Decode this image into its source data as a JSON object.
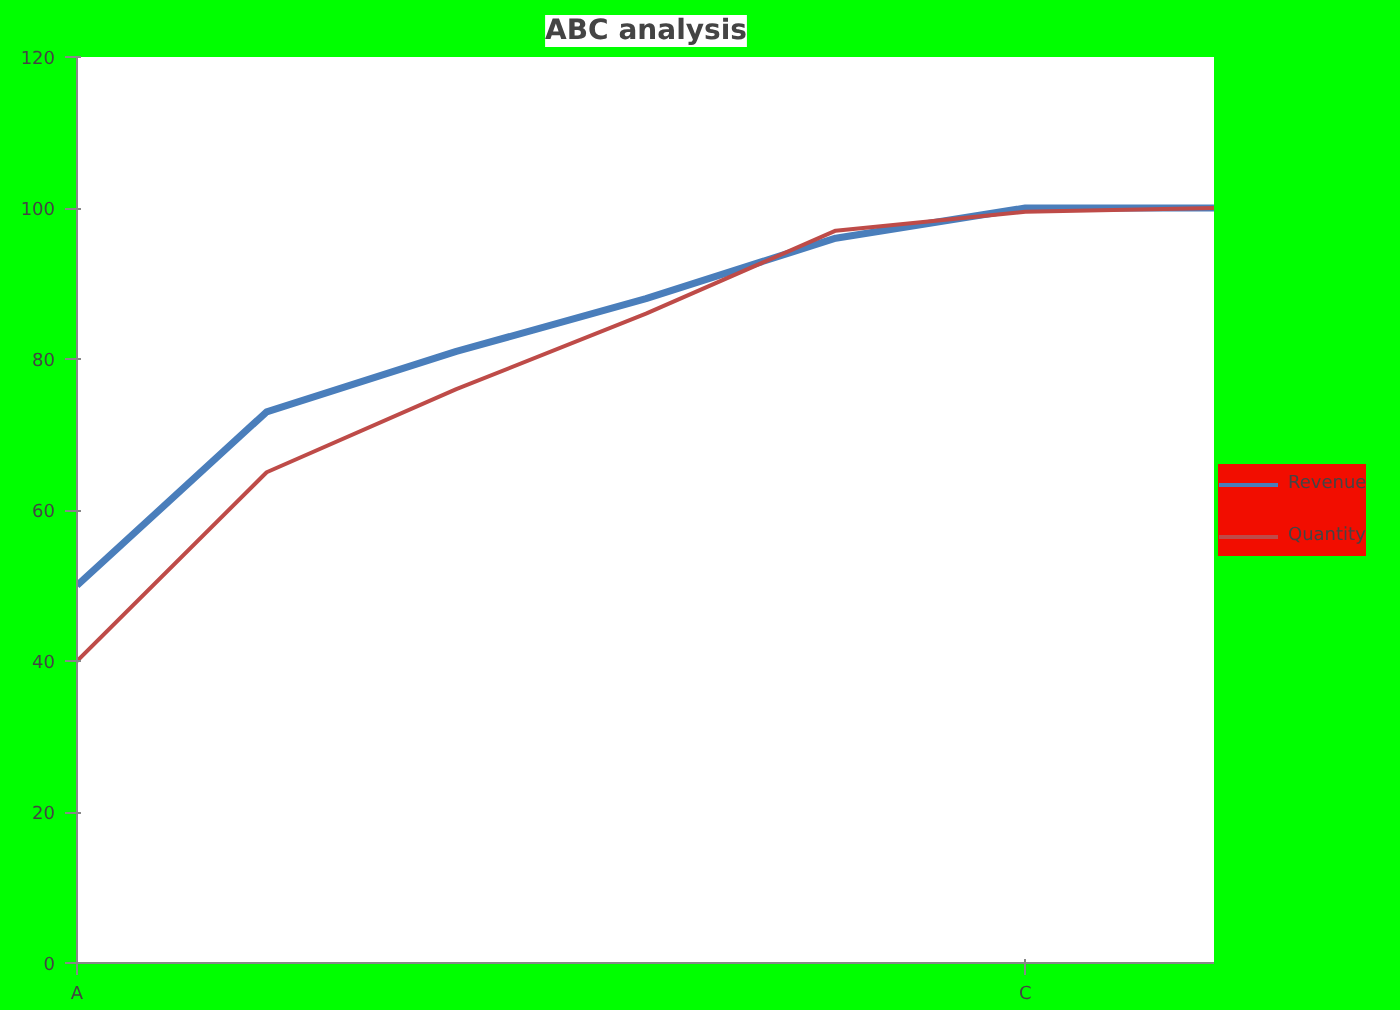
{
  "chart_data": {
    "type": "line",
    "title": "ABC analysis",
    "categories": [
      "A",
      null,
      null,
      null,
      null,
      "C",
      null
    ],
    "series": [
      {
        "name": "Revenue",
        "color": "#4a7ebb",
        "values": [
          50,
          73,
          81,
          88,
          96,
          100,
          100
        ]
      },
      {
        "name": "Quantity",
        "color": "#be4b48",
        "values": [
          40,
          65,
          76,
          86,
          97,
          99.5,
          100
        ]
      }
    ],
    "ylim": [
      0,
      120
    ],
    "yticks": [
      0,
      20,
      40,
      60,
      80,
      100,
      120
    ],
    "grid": false,
    "legend": "right",
    "marker": "none"
  }
}
